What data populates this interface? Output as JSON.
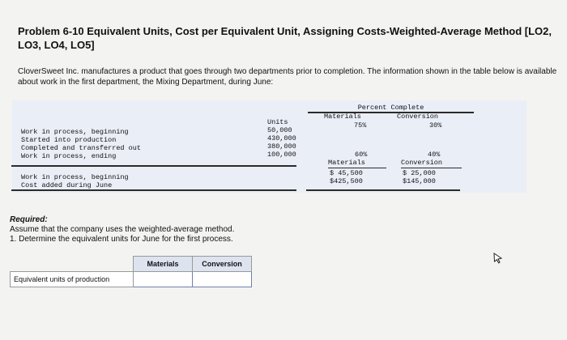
{
  "problem": {
    "title": "Problem 6-10 Equivalent Units, Cost per Equivalent Unit, Assigning Costs-Weighted-Average Method [LO2, LO3, LO4, LO5]",
    "intro": "CloverSweet Inc. manufactures a product that goes through two departments prior to completion. The information shown in the table below is available about work in the first department, the Mixing Department, during June:"
  },
  "data_table": {
    "percent_complete_header": "Percent Complete",
    "units_header": "Units",
    "materials_header": "Materials",
    "conversion_header": "Conversion",
    "rows": [
      {
        "label": "Work in process, beginning",
        "units": "50,000",
        "materials": "75%",
        "conversion": "30%"
      },
      {
        "label": "Started into production",
        "units": "430,000"
      },
      {
        "label": "Completed and transferred out",
        "units": "380,000"
      },
      {
        "label": "Work in process, ending",
        "units": "100,000",
        "materials": "60%",
        "conversion": "40%"
      }
    ],
    "cost_rows": [
      {
        "label": "Work in process, beginning",
        "materials": "$ 45,500",
        "conversion": "$ 25,000"
      },
      {
        "label": "Cost added during June",
        "materials": "$425,500",
        "conversion": "$145,000"
      }
    ]
  },
  "required": {
    "heading": "Required:",
    "line1": "Assume that the company uses the weighted-average method.",
    "line2": "1. Determine the equivalent units for June for the first process."
  },
  "answer_table": {
    "col_materials": "Materials",
    "col_conversion": "Conversion",
    "row_label": "Equivalent units of production",
    "materials_value": "",
    "conversion_value": ""
  }
}
